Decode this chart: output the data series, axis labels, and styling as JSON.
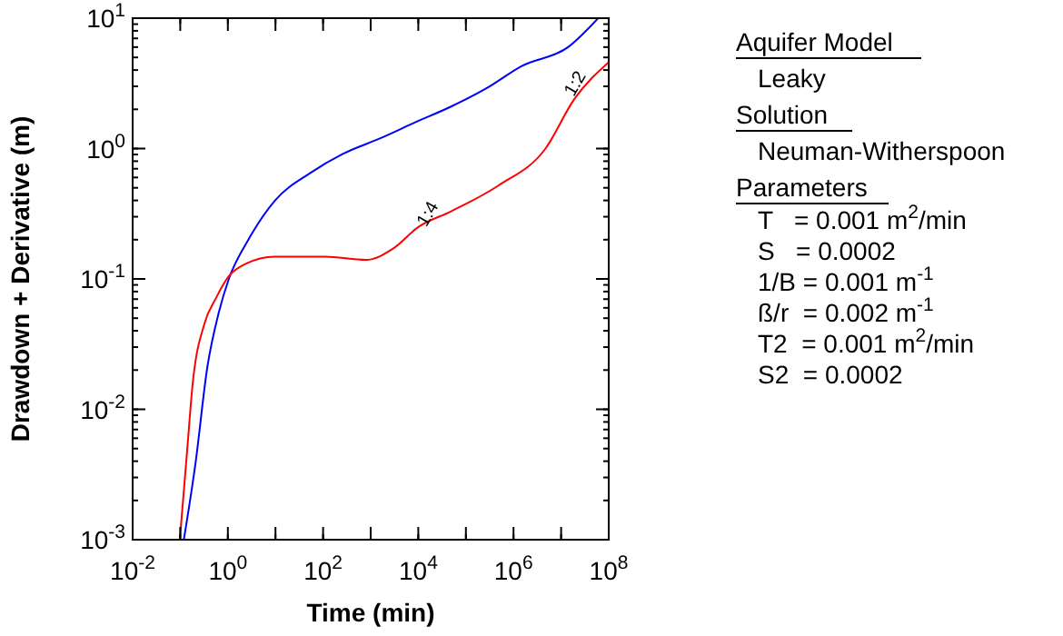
{
  "chart_data": {
    "type": "line",
    "xlabel": "Time (min)",
    "ylabel": "Drawdown + Derivative (m)",
    "log": "xy",
    "grid": false,
    "xlim": [
      0.01,
      100000000
    ],
    "ylim": [
      0.001,
      10
    ],
    "xticks": [
      {
        "value": 0.01,
        "label": "10$^{-2}$"
      },
      {
        "value": 0.1,
        "label": null
      },
      {
        "value": 1,
        "label": "10$^{0}$"
      },
      {
        "value": 10,
        "label": null
      },
      {
        "value": 100,
        "label": "10$^{2}$"
      },
      {
        "value": 1000,
        "label": null
      },
      {
        "value": 10000,
        "label": "10$^{4}$"
      },
      {
        "value": 100000,
        "label": null
      },
      {
        "value": 1000000,
        "label": "10$^{6}$"
      },
      {
        "value": 10000000,
        "label": null
      },
      {
        "value": 100000000,
        "label": "10$^{8}$"
      }
    ],
    "yticks": [
      {
        "value": 0.001,
        "label": "10$^{-3}$"
      },
      {
        "value": 0.01,
        "label": "10$^{-2}$"
      },
      {
        "value": 0.1,
        "label": "10$^{-1}$"
      },
      {
        "value": 1,
        "label": "10$^{0}$"
      },
      {
        "value": 10,
        "label": "10$^{1}$"
      }
    ],
    "series": [
      {
        "color": "#0000ff",
        "x": [
          0.119,
          0.21,
          0.37,
          0.65,
          1.05,
          2.7,
          9.8,
          54,
          260,
          1600,
          9000,
          49000,
          270000,
          1500000,
          14000000,
          60000000
        ],
        "values": [
          0.001,
          0.0039,
          0.021,
          0.056,
          0.1,
          0.2,
          0.4,
          0.65,
          0.91,
          1.2,
          1.6,
          2.1,
          2.9,
          4.3,
          6,
          10
        ]
      },
      {
        "color": "#ff0000",
        "x": [
          0.098,
          0.14,
          0.18,
          0.32,
          0.56,
          1.05,
          2.3,
          9.8,
          110,
          800,
          2900,
          10000,
          49000,
          480000,
          4700000,
          19000000,
          100000000
        ],
        "values": [
          0.001,
          0.0049,
          0.015,
          0.045,
          0.071,
          0.105,
          0.13,
          0.148,
          0.148,
          0.14,
          0.17,
          0.25,
          0.33,
          0.52,
          1,
          2.4,
          4.6
        ]
      }
    ],
    "annotations": [
      {
        "text": "1:4",
        "x": 20000,
        "y": 0.3
      },
      {
        "text": "1:2",
        "x": 25000000,
        "y": 3
      },
      "Aquifer Model",
      "Leaky",
      "Solution",
      "Neuman-Witherspoon",
      "Parameters",
      "T   = 0.001 m$^{2}$/min",
      "S   = 0.0002",
      "1/B = 0.001 m$^{-1}$",
      "ß/r  = 0.002 m$^{-1}$",
      "T2  = 0.001 m$^{2}$/min",
      "S2  = 0.0002"
    ]
  }
}
